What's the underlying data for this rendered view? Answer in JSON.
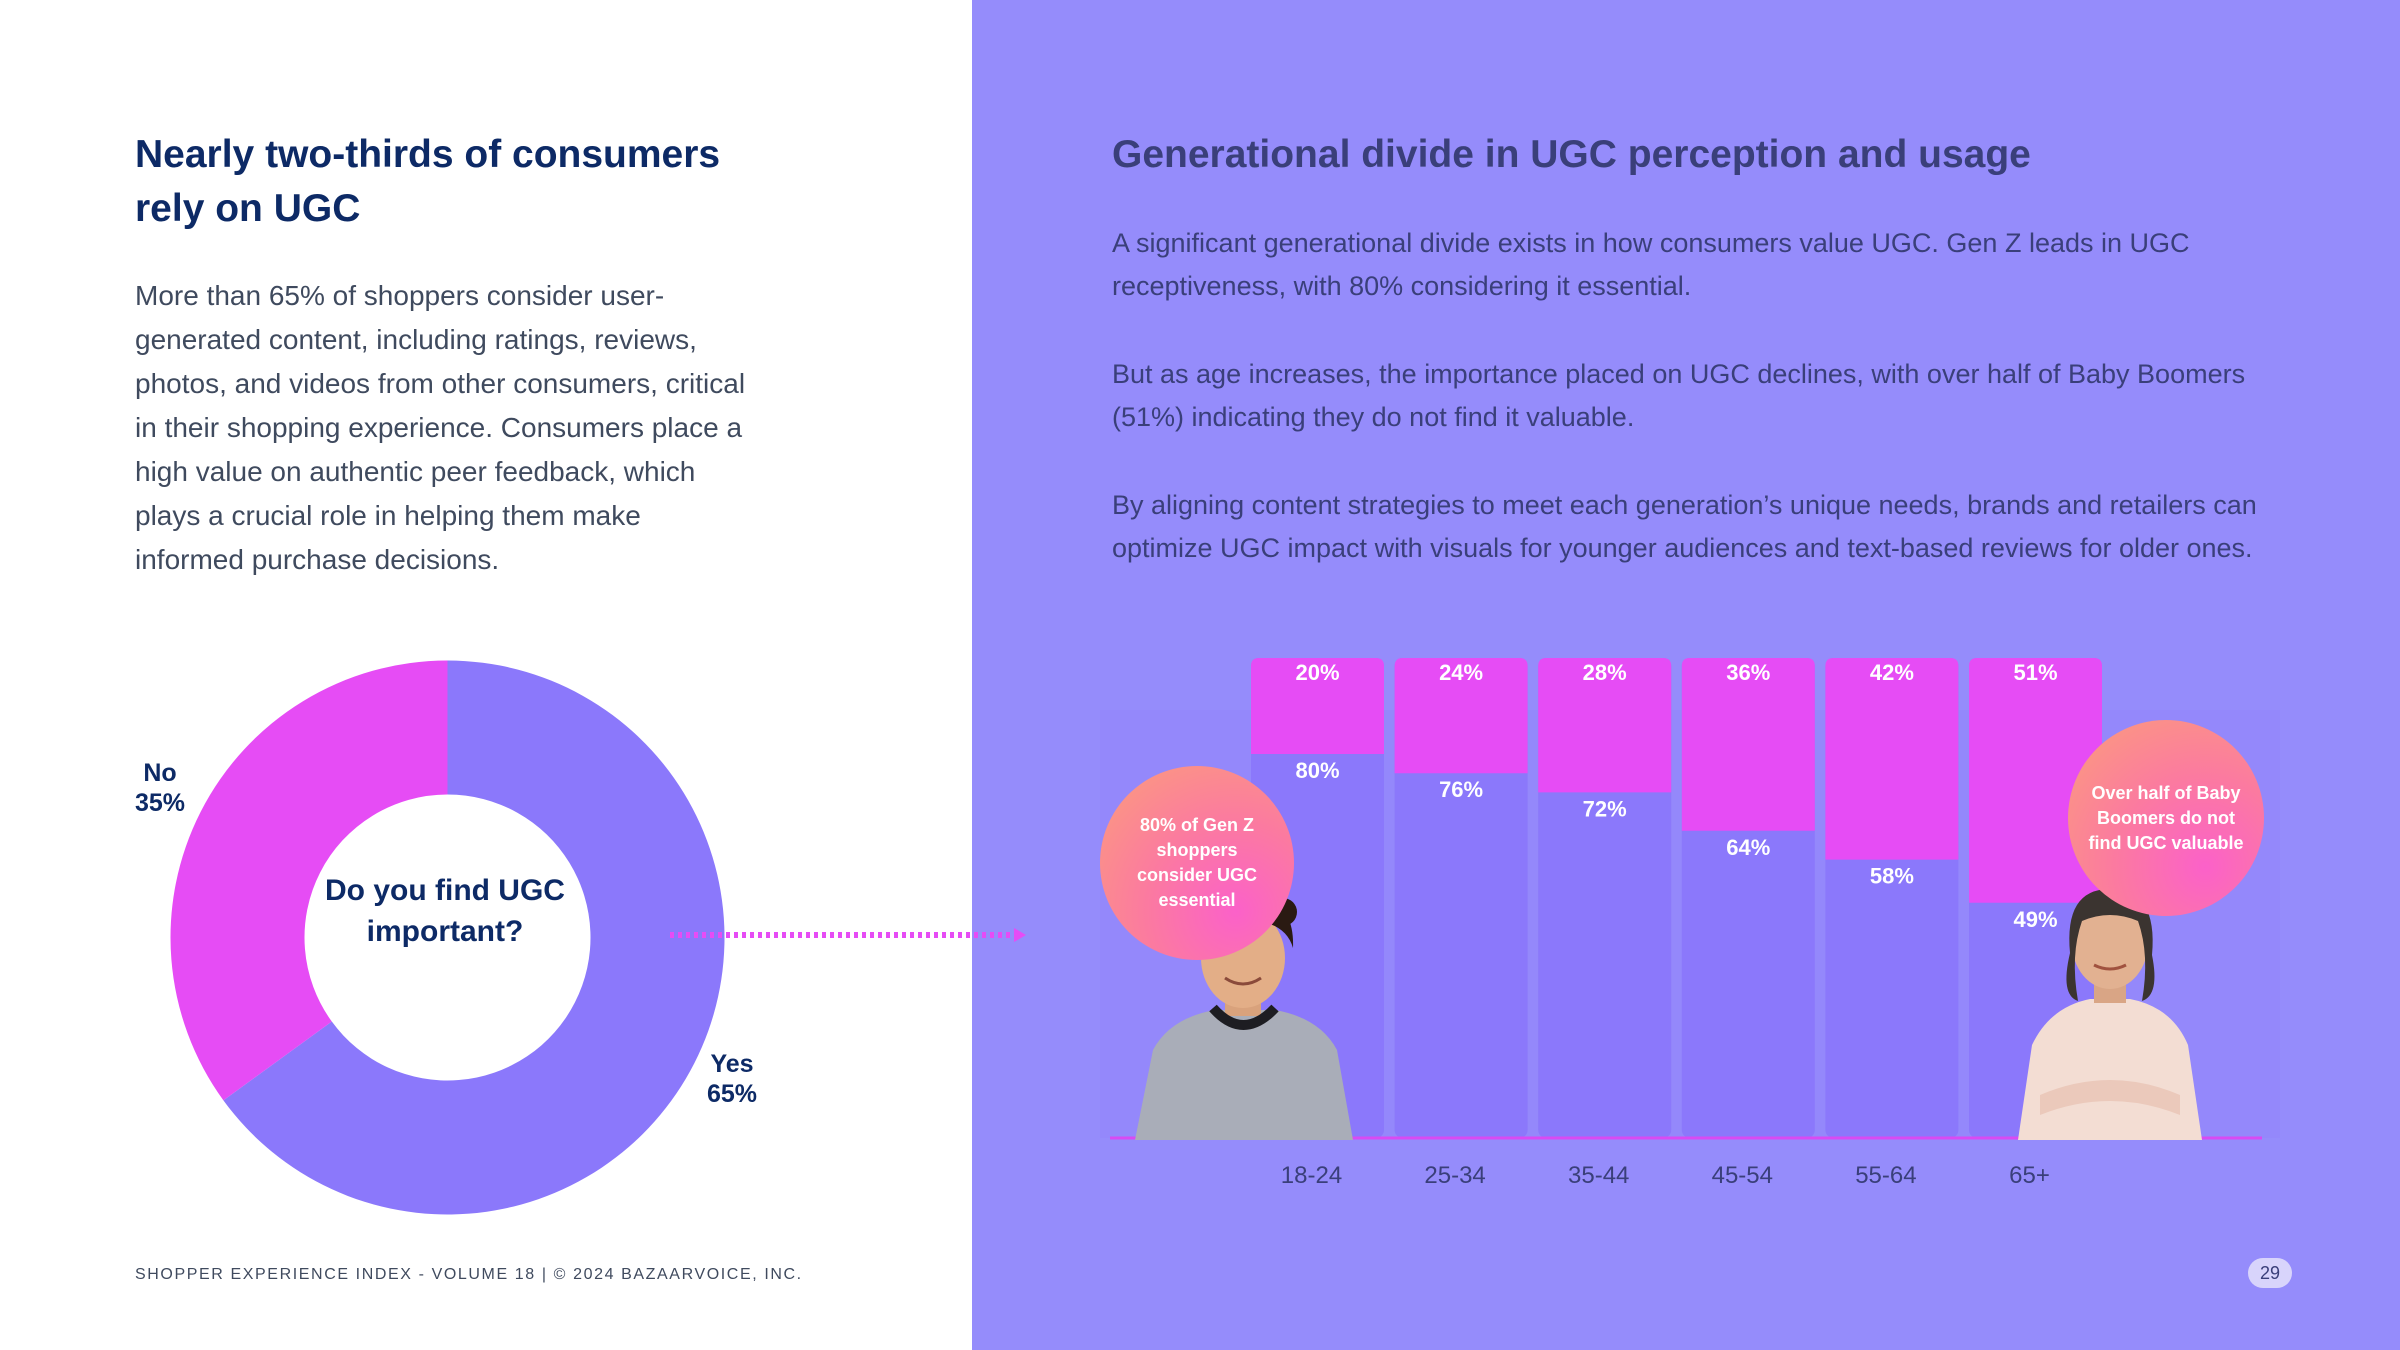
{
  "left": {
    "title": "Nearly two-thirds of consumers rely on UGC",
    "body": "More than 65% of shoppers consider user-generated content, including ratings, reviews, photos, and videos from other consumers, critical in their shopping experience. Consumers place a high value on authentic peer feedback, which plays a crucial role in helping them make informed purchase decisions.",
    "donut": {
      "question": "Do you find UGC important?",
      "slices": [
        {
          "label": "Yes",
          "value": 65,
          "value_text": "65%",
          "color": "#8b78fb"
        },
        {
          "label": "No",
          "value": 35,
          "value_text": "35%",
          "color": "#e64cf5"
        }
      ]
    }
  },
  "footer": "SHOPPER EXPERIENCE INDEX - VOLUME 18  |  © 2024 BAZAARVOICE, INC.",
  "right": {
    "title": "Generational divide in UGC perception and usage",
    "paragraphs": [
      "A significant generational divide exists in how consumers value UGC. Gen Z leads in UGC receptiveness, with 80% considering it essential.",
      "But as age increases, the importance placed on UGC declines, with over half of Baby Boomers (51%) indicating they do not find it valuable.",
      "By aligning content strategies to meet each generation’s unique needs, brands and retailers can optimize UGC impact with visuals for younger audiences and text-based reviews for older ones."
    ],
    "callouts": {
      "genz": "80% of Gen Z shoppers consider UGC essential",
      "boomers": "Over half of Baby Boomers do not find UGC valuable"
    }
  },
  "chart_data": {
    "type": "bar",
    "stacked": true,
    "normalized_to": 100,
    "categories": [
      "18-24",
      "25-34",
      "35-44",
      "45-54",
      "55-64",
      "65+"
    ],
    "series": [
      {
        "values": [
          80,
          76,
          72,
          64,
          58,
          49
        ],
        "color": "#8b78fb"
      },
      {
        "values": [
          20,
          24,
          28,
          36,
          42,
          51
        ],
        "color": "#e64cf5"
      }
    ],
    "grid": false,
    "legend": "none"
  },
  "page_number": "29",
  "colors": {
    "navy": "#0d2a66",
    "purple_panel": "#958cfb",
    "bar_purple": "#8b78fb",
    "magenta": "#e64cf5"
  }
}
